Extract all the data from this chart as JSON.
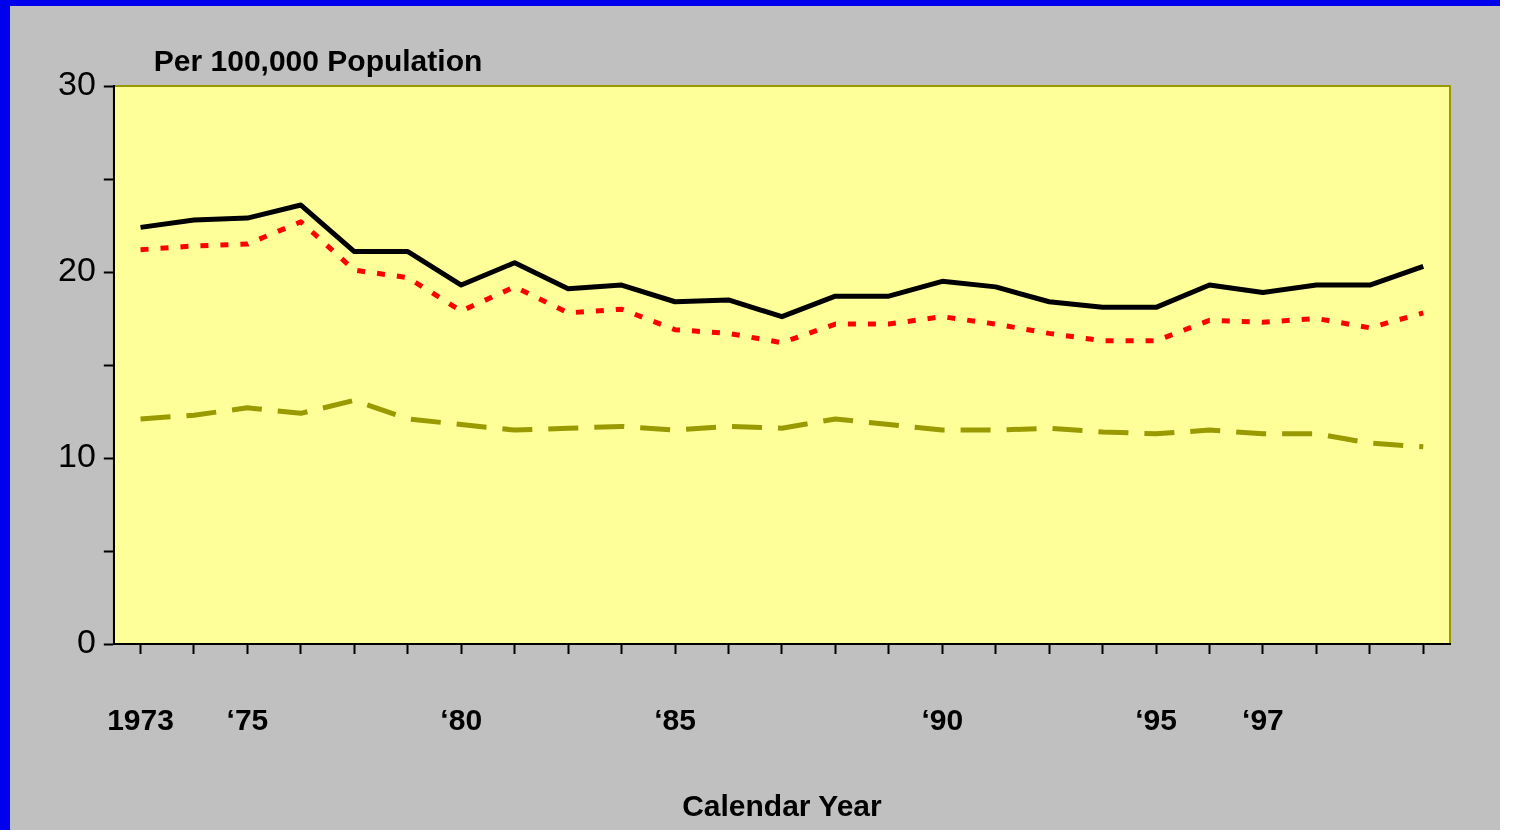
{
  "chart_data": {
    "type": "line",
    "ylabel": "Per 100,000 Population",
    "xlabel": "Calendar Year",
    "categories": [
      "1973",
      null,
      "‘75",
      null,
      null,
      null,
      "‘80",
      null,
      null,
      null,
      "‘85",
      null,
      null,
      null,
      null,
      "‘90",
      null,
      null,
      null,
      "‘95",
      null,
      "‘97",
      null,
      null,
      null
    ],
    "series": [
      {
        "color": "#000000",
        "line_style": "solid",
        "values": [
          22.4,
          22.8,
          22.9,
          23.6,
          21.1,
          21.1,
          19.3,
          20.5,
          19.1,
          19.3,
          18.4,
          18.5,
          17.6,
          18.7,
          18.7,
          19.5,
          19.2,
          18.4,
          18.1,
          18.1,
          19.3,
          18.9,
          19.3,
          19.3,
          20.3
        ]
      },
      {
        "color": "#ff0000",
        "line_style": "dotted",
        "values": [
          21.2,
          21.4,
          21.5,
          22.7,
          20.1,
          19.7,
          17.9,
          19.2,
          17.8,
          18.0,
          16.9,
          16.7,
          16.2,
          17.2,
          17.2,
          17.6,
          17.2,
          16.7,
          16.3,
          16.3,
          17.4,
          17.3,
          17.5,
          17.0,
          17.8
        ]
      },
      {
        "color": "#999900",
        "line_style": "dashed",
        "values": [
          12.1,
          12.3,
          12.7,
          12.4,
          13.1,
          12.1,
          11.8,
          11.5,
          11.6,
          11.7,
          11.5,
          11.7,
          11.6,
          12.1,
          11.8,
          11.5,
          11.5,
          11.6,
          11.4,
          11.3,
          11.5,
          11.3,
          11.3,
          10.8,
          10.6
        ]
      }
    ],
    "ylim": [
      0,
      30
    ],
    "yticks": [
      0,
      {
        "value": 5,
        "label": null
      },
      10,
      {
        "value": 15,
        "label": null
      },
      20,
      {
        "value": 25,
        "label": null
      },
      30
    ],
    "grid": false,
    "legend": false,
    "marker": "none"
  }
}
